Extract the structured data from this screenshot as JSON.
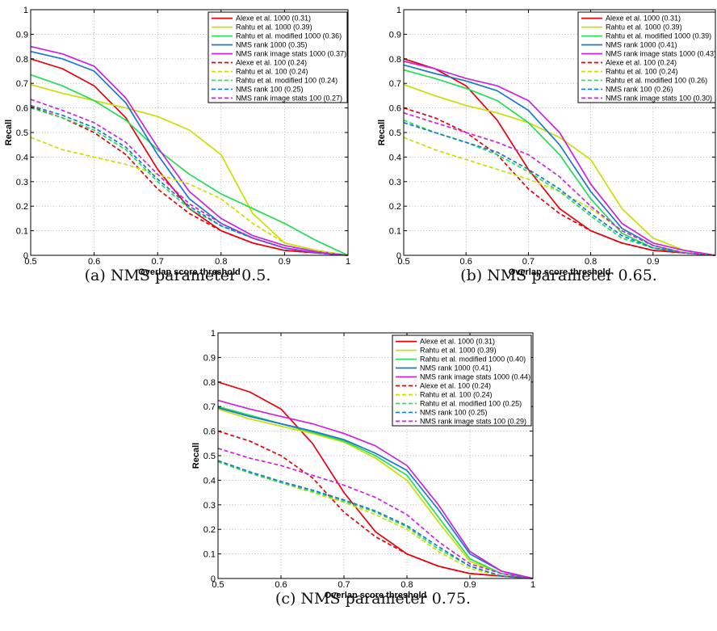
{
  "colors": {
    "red": "#e8000b",
    "yellow": "#c8e000",
    "green": "#22dd55",
    "blue": "#1a78d0",
    "magenta": "#cc22dd"
  },
  "chart_data": [
    {
      "type": "line",
      "caption": "(a) NMS parameter 0.5.",
      "xlabel": "Overlap score threshold",
      "ylabel": "Recall",
      "xlim": [
        0.5,
        1
      ],
      "ylim": [
        0,
        1
      ],
      "xticks": [
        "0.5",
        "0.6",
        "0.7",
        "0.8",
        "0.9",
        "1"
      ],
      "yticks": [
        "0",
        "0.1",
        "0.2",
        "0.3",
        "0.4",
        "0.5",
        "0.6",
        "0.7",
        "0.8",
        "0.9",
        "1"
      ],
      "grid": true,
      "legend_position": "top-right",
      "series": [
        {
          "name": "Alexe et al. 1000 (0.31)",
          "color": "red",
          "dashed": false,
          "x": [
            0.5,
            0.55,
            0.6,
            0.65,
            0.7,
            0.75,
            0.8,
            0.85,
            0.9,
            0.95,
            1.0
          ],
          "y": [
            0.8,
            0.76,
            0.69,
            0.56,
            0.35,
            0.19,
            0.1,
            0.05,
            0.02,
            0.01,
            0.0
          ]
        },
        {
          "name": "Rahtu et al. 1000 (0.39)",
          "color": "yellow",
          "dashed": false,
          "x": [
            0.5,
            0.55,
            0.6,
            0.65,
            0.7,
            0.75,
            0.8,
            0.85,
            0.9,
            0.95,
            1.0
          ],
          "y": [
            0.695,
            0.66,
            0.63,
            0.6,
            0.565,
            0.51,
            0.41,
            0.17,
            0.05,
            0.02,
            0.0
          ]
        },
        {
          "name": "Rahtu et al. modified 1000 (0.36)",
          "color": "green",
          "dashed": false,
          "x": [
            0.5,
            0.55,
            0.6,
            0.65,
            0.7,
            0.75,
            0.8,
            0.85,
            0.9,
            0.95,
            1.0
          ],
          "y": [
            0.735,
            0.69,
            0.63,
            0.55,
            0.43,
            0.33,
            0.25,
            0.19,
            0.13,
            0.06,
            0.0
          ]
        },
        {
          "name": "NMS rank 1000 (0.35)",
          "color": "blue",
          "dashed": false,
          "x": [
            0.5,
            0.55,
            0.6,
            0.65,
            0.7,
            0.75,
            0.8,
            0.85,
            0.9,
            0.95,
            1.0
          ],
          "y": [
            0.83,
            0.8,
            0.75,
            0.62,
            0.41,
            0.23,
            0.13,
            0.07,
            0.03,
            0.01,
            0.0
          ]
        },
        {
          "name": "NMS rank image stats 1000 (0.37)",
          "color": "magenta",
          "dashed": false,
          "x": [
            0.5,
            0.55,
            0.6,
            0.65,
            0.7,
            0.75,
            0.8,
            0.85,
            0.9,
            0.95,
            1.0
          ],
          "y": [
            0.85,
            0.82,
            0.77,
            0.64,
            0.44,
            0.26,
            0.15,
            0.08,
            0.04,
            0.015,
            0.0
          ]
        },
        {
          "name": "Alexe et al. 100 (0.24)",
          "color": "red",
          "dashed": true,
          "x": [
            0.5,
            0.55,
            0.6,
            0.65,
            0.7,
            0.75,
            0.8,
            0.85,
            0.9,
            0.95,
            1.0
          ],
          "y": [
            0.605,
            0.56,
            0.5,
            0.41,
            0.27,
            0.17,
            0.1,
            0.05,
            0.02,
            0.01,
            0.0
          ]
        },
        {
          "name": "Rahtu et al. 100 (0.24)",
          "color": "yellow",
          "dashed": true,
          "x": [
            0.5,
            0.55,
            0.6,
            0.65,
            0.7,
            0.75,
            0.8,
            0.85,
            0.9,
            0.95,
            1.0
          ],
          "y": [
            0.48,
            0.43,
            0.4,
            0.37,
            0.33,
            0.29,
            0.23,
            0.13,
            0.05,
            0.02,
            0.0
          ]
        },
        {
          "name": "Rahtu et al. modified 100 (0.24)",
          "color": "green",
          "dashed": true,
          "x": [
            0.5,
            0.55,
            0.6,
            0.65,
            0.7,
            0.75,
            0.8,
            0.85,
            0.9,
            0.95,
            1.0
          ],
          "y": [
            0.6,
            0.56,
            0.51,
            0.43,
            0.3,
            0.19,
            0.12,
            0.07,
            0.03,
            0.01,
            0.0
          ]
        },
        {
          "name": "NMS rank 100 (0.25)",
          "color": "blue",
          "dashed": true,
          "x": [
            0.5,
            0.55,
            0.6,
            0.65,
            0.7,
            0.75,
            0.8,
            0.85,
            0.9,
            0.95,
            1.0
          ],
          "y": [
            0.61,
            0.57,
            0.52,
            0.44,
            0.31,
            0.2,
            0.12,
            0.07,
            0.03,
            0.01,
            0.0
          ]
        },
        {
          "name": "NMS rank image stats 100 (0.27)",
          "color": "magenta",
          "dashed": true,
          "x": [
            0.5,
            0.55,
            0.6,
            0.65,
            0.7,
            0.75,
            0.8,
            0.85,
            0.9,
            0.95,
            1.0
          ],
          "y": [
            0.635,
            0.59,
            0.54,
            0.46,
            0.33,
            0.21,
            0.13,
            0.07,
            0.03,
            0.01,
            0.0
          ]
        }
      ]
    },
    {
      "type": "line",
      "caption": "(b) NMS parameter 0.65.",
      "xlabel": "Overlap score threshold",
      "ylabel": "Recall",
      "xlim": [
        0.5,
        1
      ],
      "ylim": [
        0,
        1
      ],
      "xticks": [
        "0.5",
        "0.6",
        "0.7",
        "0.8",
        "0.9",
        ""
      ],
      "yticks": [
        "0",
        "0.1",
        "0.2",
        "0.3",
        "0.4",
        "0.5",
        "0.6",
        "0.7",
        "0.8",
        "0.9",
        "1"
      ],
      "grid": true,
      "legend_position": "top-right",
      "series": [
        {
          "name": "Alexe et al. 1000 (0.31)",
          "color": "red",
          "dashed": false,
          "x": [
            0.5,
            0.55,
            0.6,
            0.65,
            0.7,
            0.75,
            0.8,
            0.85,
            0.9,
            0.95,
            1.0
          ],
          "y": [
            0.8,
            0.76,
            0.69,
            0.55,
            0.35,
            0.19,
            0.1,
            0.05,
            0.02,
            0.01,
            0.0
          ]
        },
        {
          "name": "Rahtu et al. 1000 (0.39)",
          "color": "yellow",
          "dashed": false,
          "x": [
            0.5,
            0.55,
            0.6,
            0.65,
            0.7,
            0.75,
            0.8,
            0.85,
            0.9,
            0.95,
            1.0
          ],
          "y": [
            0.695,
            0.65,
            0.61,
            0.58,
            0.54,
            0.48,
            0.39,
            0.19,
            0.07,
            0.02,
            0.0
          ]
        },
        {
          "name": "Rahtu et al. modified 1000 (0.39)",
          "color": "green",
          "dashed": false,
          "x": [
            0.5,
            0.55,
            0.6,
            0.65,
            0.7,
            0.75,
            0.8,
            0.85,
            0.9,
            0.95,
            1.0
          ],
          "y": [
            0.755,
            0.72,
            0.68,
            0.63,
            0.54,
            0.41,
            0.23,
            0.09,
            0.03,
            0.01,
            0.0
          ]
        },
        {
          "name": "NMS rank 1000 (0.41)",
          "color": "blue",
          "dashed": false,
          "x": [
            0.5,
            0.55,
            0.6,
            0.65,
            0.7,
            0.75,
            0.8,
            0.85,
            0.9,
            0.95,
            1.0
          ],
          "y": [
            0.775,
            0.74,
            0.71,
            0.67,
            0.59,
            0.45,
            0.26,
            0.11,
            0.04,
            0.01,
            0.0
          ]
        },
        {
          "name": "NMS rank image stats 1000 (0.43)",
          "color": "magenta",
          "dashed": false,
          "x": [
            0.5,
            0.55,
            0.6,
            0.65,
            0.7,
            0.75,
            0.8,
            0.85,
            0.9,
            0.95,
            1.0
          ],
          "y": [
            0.79,
            0.76,
            0.72,
            0.69,
            0.63,
            0.5,
            0.29,
            0.13,
            0.05,
            0.02,
            0.0
          ]
        },
        {
          "name": "Alexe et al. 100 (0.24)",
          "color": "red",
          "dashed": true,
          "x": [
            0.5,
            0.55,
            0.6,
            0.65,
            0.7,
            0.75,
            0.8,
            0.85,
            0.9,
            0.95,
            1.0
          ],
          "y": [
            0.6,
            0.56,
            0.5,
            0.41,
            0.27,
            0.17,
            0.1,
            0.05,
            0.02,
            0.01,
            0.0
          ]
        },
        {
          "name": "Rahtu et al. 100 (0.24)",
          "color": "yellow",
          "dashed": true,
          "x": [
            0.5,
            0.55,
            0.6,
            0.65,
            0.7,
            0.75,
            0.8,
            0.85,
            0.9,
            0.95,
            1.0
          ],
          "y": [
            0.48,
            0.43,
            0.39,
            0.35,
            0.31,
            0.26,
            0.19,
            0.1,
            0.04,
            0.01,
            0.0
          ]
        },
        {
          "name": "Rahtu et al. modified 100 (0.26)",
          "color": "green",
          "dashed": true,
          "x": [
            0.5,
            0.55,
            0.6,
            0.65,
            0.7,
            0.75,
            0.8,
            0.85,
            0.9,
            0.95,
            1.0
          ],
          "y": [
            0.55,
            0.5,
            0.46,
            0.41,
            0.34,
            0.26,
            0.16,
            0.07,
            0.03,
            0.01,
            0.0
          ]
        },
        {
          "name": "NMS rank 100 (0.26)",
          "color": "blue",
          "dashed": true,
          "x": [
            0.5,
            0.55,
            0.6,
            0.65,
            0.7,
            0.75,
            0.8,
            0.85,
            0.9,
            0.95,
            1.0
          ],
          "y": [
            0.54,
            0.5,
            0.46,
            0.42,
            0.35,
            0.27,
            0.17,
            0.08,
            0.03,
            0.01,
            0.0
          ]
        },
        {
          "name": "NMS rank image stats 100 (0.30)",
          "color": "magenta",
          "dashed": true,
          "x": [
            0.5,
            0.55,
            0.6,
            0.65,
            0.7,
            0.75,
            0.8,
            0.85,
            0.9,
            0.95,
            1.0
          ],
          "y": [
            0.58,
            0.54,
            0.5,
            0.46,
            0.41,
            0.32,
            0.2,
            0.1,
            0.04,
            0.01,
            0.0
          ]
        }
      ]
    },
    {
      "type": "line",
      "caption": "(c) NMS parameter 0.75.",
      "xlabel": "Overlap score threshold",
      "ylabel": "Recall",
      "xlim": [
        0.5,
        1
      ],
      "ylim": [
        0,
        1
      ],
      "xticks": [
        "0.5",
        "0.6",
        "0.7",
        "0.8",
        "0.9",
        "1"
      ],
      "yticks": [
        "0",
        "0.1",
        "0.2",
        "0.3",
        "0.4",
        "0.5",
        "0.6",
        "0.7",
        "0.8",
        "0.9",
        "1"
      ],
      "grid": true,
      "legend_position": "top-right",
      "series": [
        {
          "name": "Alexe et al. 1000 (0.31)",
          "color": "red",
          "dashed": false,
          "x": [
            0.5,
            0.55,
            0.6,
            0.65,
            0.7,
            0.75,
            0.8,
            0.85,
            0.9,
            0.95,
            1.0
          ],
          "y": [
            0.8,
            0.76,
            0.69,
            0.55,
            0.35,
            0.19,
            0.1,
            0.05,
            0.02,
            0.01,
            0.0
          ]
        },
        {
          "name": "Rahtu et al. 1000 (0.39)",
          "color": "yellow",
          "dashed": false,
          "x": [
            0.5,
            0.55,
            0.6,
            0.65,
            0.7,
            0.75,
            0.8,
            0.85,
            0.9,
            0.95,
            1.0
          ],
          "y": [
            0.69,
            0.65,
            0.62,
            0.59,
            0.555,
            0.49,
            0.4,
            0.23,
            0.07,
            0.02,
            0.0
          ]
        },
        {
          "name": "Rahtu et al. modified 1000 (0.40)",
          "color": "green",
          "dashed": false,
          "x": [
            0.5,
            0.55,
            0.6,
            0.65,
            0.7,
            0.75,
            0.8,
            0.85,
            0.9,
            0.95,
            1.0
          ],
          "y": [
            0.7,
            0.665,
            0.63,
            0.595,
            0.56,
            0.5,
            0.42,
            0.25,
            0.08,
            0.02,
            0.0
          ]
        },
        {
          "name": "NMS rank 1000 (0.41)",
          "color": "blue",
          "dashed": false,
          "x": [
            0.5,
            0.55,
            0.6,
            0.65,
            0.7,
            0.75,
            0.8,
            0.85,
            0.9,
            0.95,
            1.0
          ],
          "y": [
            0.695,
            0.66,
            0.63,
            0.6,
            0.565,
            0.51,
            0.44,
            0.28,
            0.1,
            0.03,
            0.0
          ]
        },
        {
          "name": "NMS rank image stats 1000 (0.44)",
          "color": "magenta",
          "dashed": false,
          "x": [
            0.5,
            0.55,
            0.6,
            0.65,
            0.7,
            0.75,
            0.8,
            0.85,
            0.9,
            0.95,
            1.0
          ],
          "y": [
            0.725,
            0.69,
            0.66,
            0.63,
            0.59,
            0.54,
            0.46,
            0.3,
            0.11,
            0.03,
            0.0
          ]
        },
        {
          "name": "Alexe et al. 100 (0.24)",
          "color": "red",
          "dashed": true,
          "x": [
            0.5,
            0.55,
            0.6,
            0.65,
            0.7,
            0.75,
            0.8,
            0.85,
            0.9,
            0.95,
            1.0
          ],
          "y": [
            0.6,
            0.56,
            0.5,
            0.41,
            0.27,
            0.17,
            0.1,
            0.05,
            0.02,
            0.01,
            0.0
          ]
        },
        {
          "name": "Rahtu et al. 100 (0.24)",
          "color": "yellow",
          "dashed": true,
          "x": [
            0.5,
            0.55,
            0.6,
            0.65,
            0.7,
            0.75,
            0.8,
            0.85,
            0.9,
            0.95,
            1.0
          ],
          "y": [
            0.48,
            0.43,
            0.39,
            0.35,
            0.31,
            0.26,
            0.2,
            0.11,
            0.04,
            0.01,
            0.0
          ]
        },
        {
          "name": "Rahtu et al. modified 100 (0.25)",
          "color": "green",
          "dashed": true,
          "x": [
            0.5,
            0.55,
            0.6,
            0.65,
            0.7,
            0.75,
            0.8,
            0.85,
            0.9,
            0.95,
            1.0
          ],
          "y": [
            0.475,
            0.43,
            0.39,
            0.355,
            0.315,
            0.27,
            0.21,
            0.12,
            0.05,
            0.01,
            0.0
          ]
        },
        {
          "name": "NMS rank 100 (0.25)",
          "color": "blue",
          "dashed": true,
          "x": [
            0.5,
            0.55,
            0.6,
            0.65,
            0.7,
            0.75,
            0.8,
            0.85,
            0.9,
            0.95,
            1.0
          ],
          "y": [
            0.48,
            0.435,
            0.395,
            0.36,
            0.32,
            0.275,
            0.215,
            0.13,
            0.05,
            0.01,
            0.0
          ]
        },
        {
          "name": "NMS rank image stats 100 (0.29)",
          "color": "magenta",
          "dashed": true,
          "x": [
            0.5,
            0.55,
            0.6,
            0.65,
            0.7,
            0.75,
            0.8,
            0.85,
            0.9,
            0.95,
            1.0
          ],
          "y": [
            0.53,
            0.49,
            0.46,
            0.42,
            0.38,
            0.33,
            0.26,
            0.15,
            0.06,
            0.02,
            0.0
          ]
        }
      ]
    }
  ]
}
